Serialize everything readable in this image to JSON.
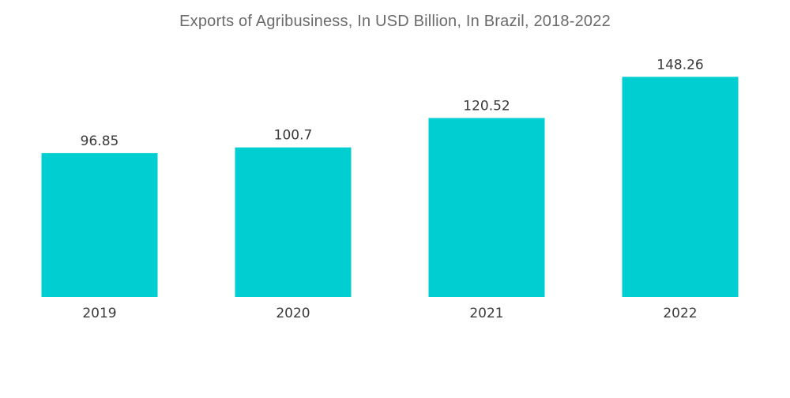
{
  "chart_data": {
    "type": "bar",
    "title": "Exports of Agribusiness, In USD Billion, In Brazil, 2018-2022",
    "categories": [
      "2019",
      "2020",
      "2021",
      "2022"
    ],
    "values": [
      96.85,
      100.7,
      120.52,
      148.26
    ],
    "value_labels": [
      "96.85",
      "100.7",
      "120.52",
      "148.26"
    ],
    "xlabel": "",
    "ylabel": "",
    "ylim": [
      0,
      200
    ],
    "grid": false,
    "bar_color": "#00CED1"
  }
}
